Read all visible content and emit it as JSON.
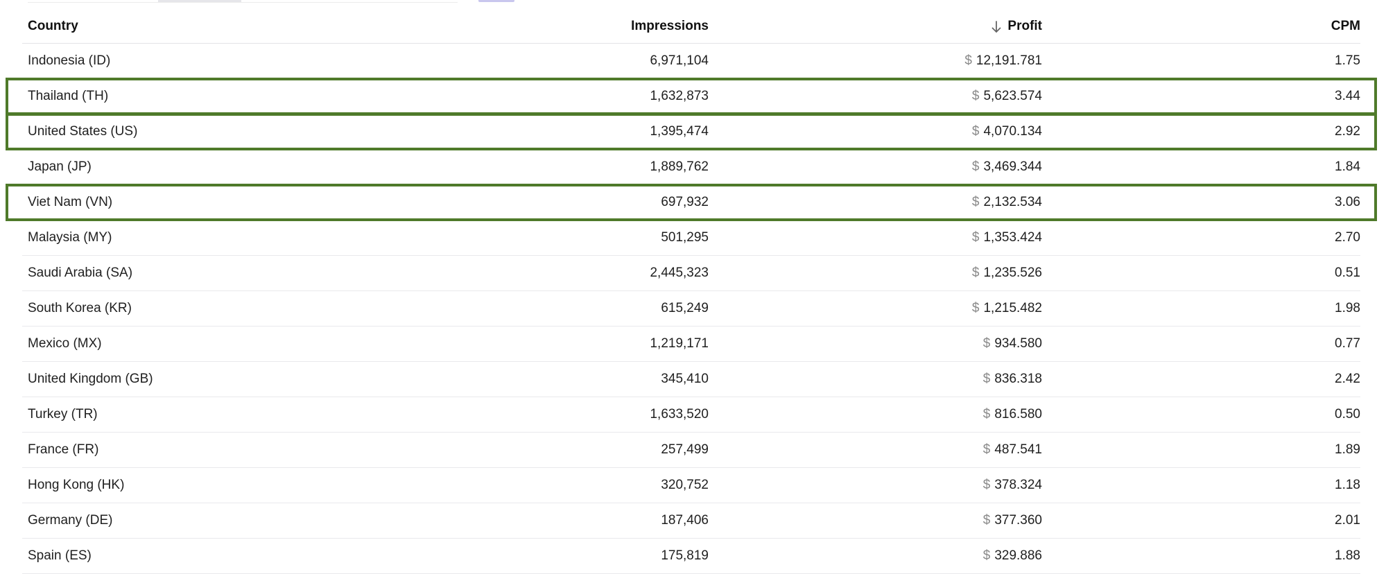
{
  "table": {
    "columns": {
      "country": "Country",
      "impressions": "Impressions",
      "profit": "Profit",
      "cpm": "CPM"
    },
    "sorted_column": "profit",
    "sort_direction": "descending",
    "currency_symbol": "$",
    "rows": [
      {
        "country": "Indonesia (ID)",
        "impressions": "6,971,104",
        "profit": "12,191.781",
        "cpm": "1.75",
        "highlighted": false
      },
      {
        "country": "Thailand (TH)",
        "impressions": "1,632,873",
        "profit": "5,623.574",
        "cpm": "3.44",
        "highlighted": true
      },
      {
        "country": "United States (US)",
        "impressions": "1,395,474",
        "profit": "4,070.134",
        "cpm": "2.92",
        "highlighted": true
      },
      {
        "country": "Japan (JP)",
        "impressions": "1,889,762",
        "profit": "3,469.344",
        "cpm": "1.84",
        "highlighted": false
      },
      {
        "country": "Viet Nam (VN)",
        "impressions": "697,932",
        "profit": "2,132.534",
        "cpm": "3.06",
        "highlighted": true
      },
      {
        "country": "Malaysia (MY)",
        "impressions": "501,295",
        "profit": "1,353.424",
        "cpm": "2.70",
        "highlighted": false
      },
      {
        "country": "Saudi Arabia (SA)",
        "impressions": "2,445,323",
        "profit": "1,235.526",
        "cpm": "0.51",
        "highlighted": false
      },
      {
        "country": "South Korea (KR)",
        "impressions": "615,249",
        "profit": "1,215.482",
        "cpm": "1.98",
        "highlighted": false
      },
      {
        "country": "Mexico (MX)",
        "impressions": "1,219,171",
        "profit": "934.580",
        "cpm": "0.77",
        "highlighted": false
      },
      {
        "country": "United Kingdom (GB)",
        "impressions": "345,410",
        "profit": "836.318",
        "cpm": "2.42",
        "highlighted": false
      },
      {
        "country": "Turkey (TR)",
        "impressions": "1,633,520",
        "profit": "816.580",
        "cpm": "0.50",
        "highlighted": false
      },
      {
        "country": "France (FR)",
        "impressions": "257,499",
        "profit": "487.541",
        "cpm": "1.89",
        "highlighted": false
      },
      {
        "country": "Hong Kong (HK)",
        "impressions": "320,752",
        "profit": "378.324",
        "cpm": "1.18",
        "highlighted": false
      },
      {
        "country": "Germany (DE)",
        "impressions": "187,406",
        "profit": "377.360",
        "cpm": "2.01",
        "highlighted": false
      },
      {
        "country": "Spain (ES)",
        "impressions": "175,819",
        "profit": "329.886",
        "cpm": "1.88",
        "highlighted": false
      }
    ]
  },
  "icons": {
    "sort": "arrow-down-icon"
  },
  "colors": {
    "highlight_border": "#4f7a2a",
    "currency_symbol": "#8a8a8a",
    "row_divider": "#e9e9ec"
  }
}
